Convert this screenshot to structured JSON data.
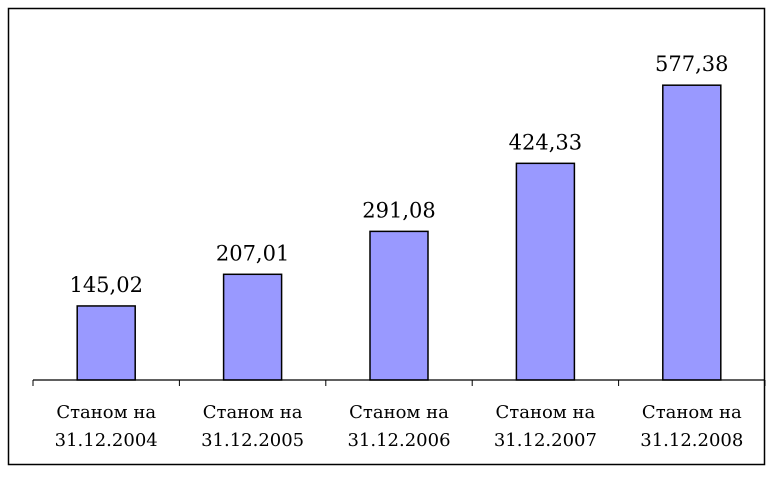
{
  "chart_data": {
    "type": "bar",
    "categories": [
      [
        "Станом на",
        "31.12.2004"
      ],
      [
        "Станом на",
        "31.12.2005"
      ],
      [
        "Станом на",
        "31.12.2006"
      ],
      [
        "Станом на",
        "31.12.2007"
      ],
      [
        "Станом на",
        "31.12.2008"
      ]
    ],
    "values": [
      145.02,
      207.01,
      291.08,
      424.33,
      577.38
    ],
    "data_labels": [
      "145,02",
      "207,01",
      "291,08",
      "424,33",
      "577,38"
    ],
    "title": "",
    "xlabel": "",
    "ylabel": "",
    "ylim": [
      0,
      650
    ],
    "grid": false,
    "legend": "none",
    "colors": {
      "bar_fill": "#9999ff",
      "bar_stroke": "#000000",
      "frame": "#000000",
      "background": "#ffffff"
    }
  }
}
